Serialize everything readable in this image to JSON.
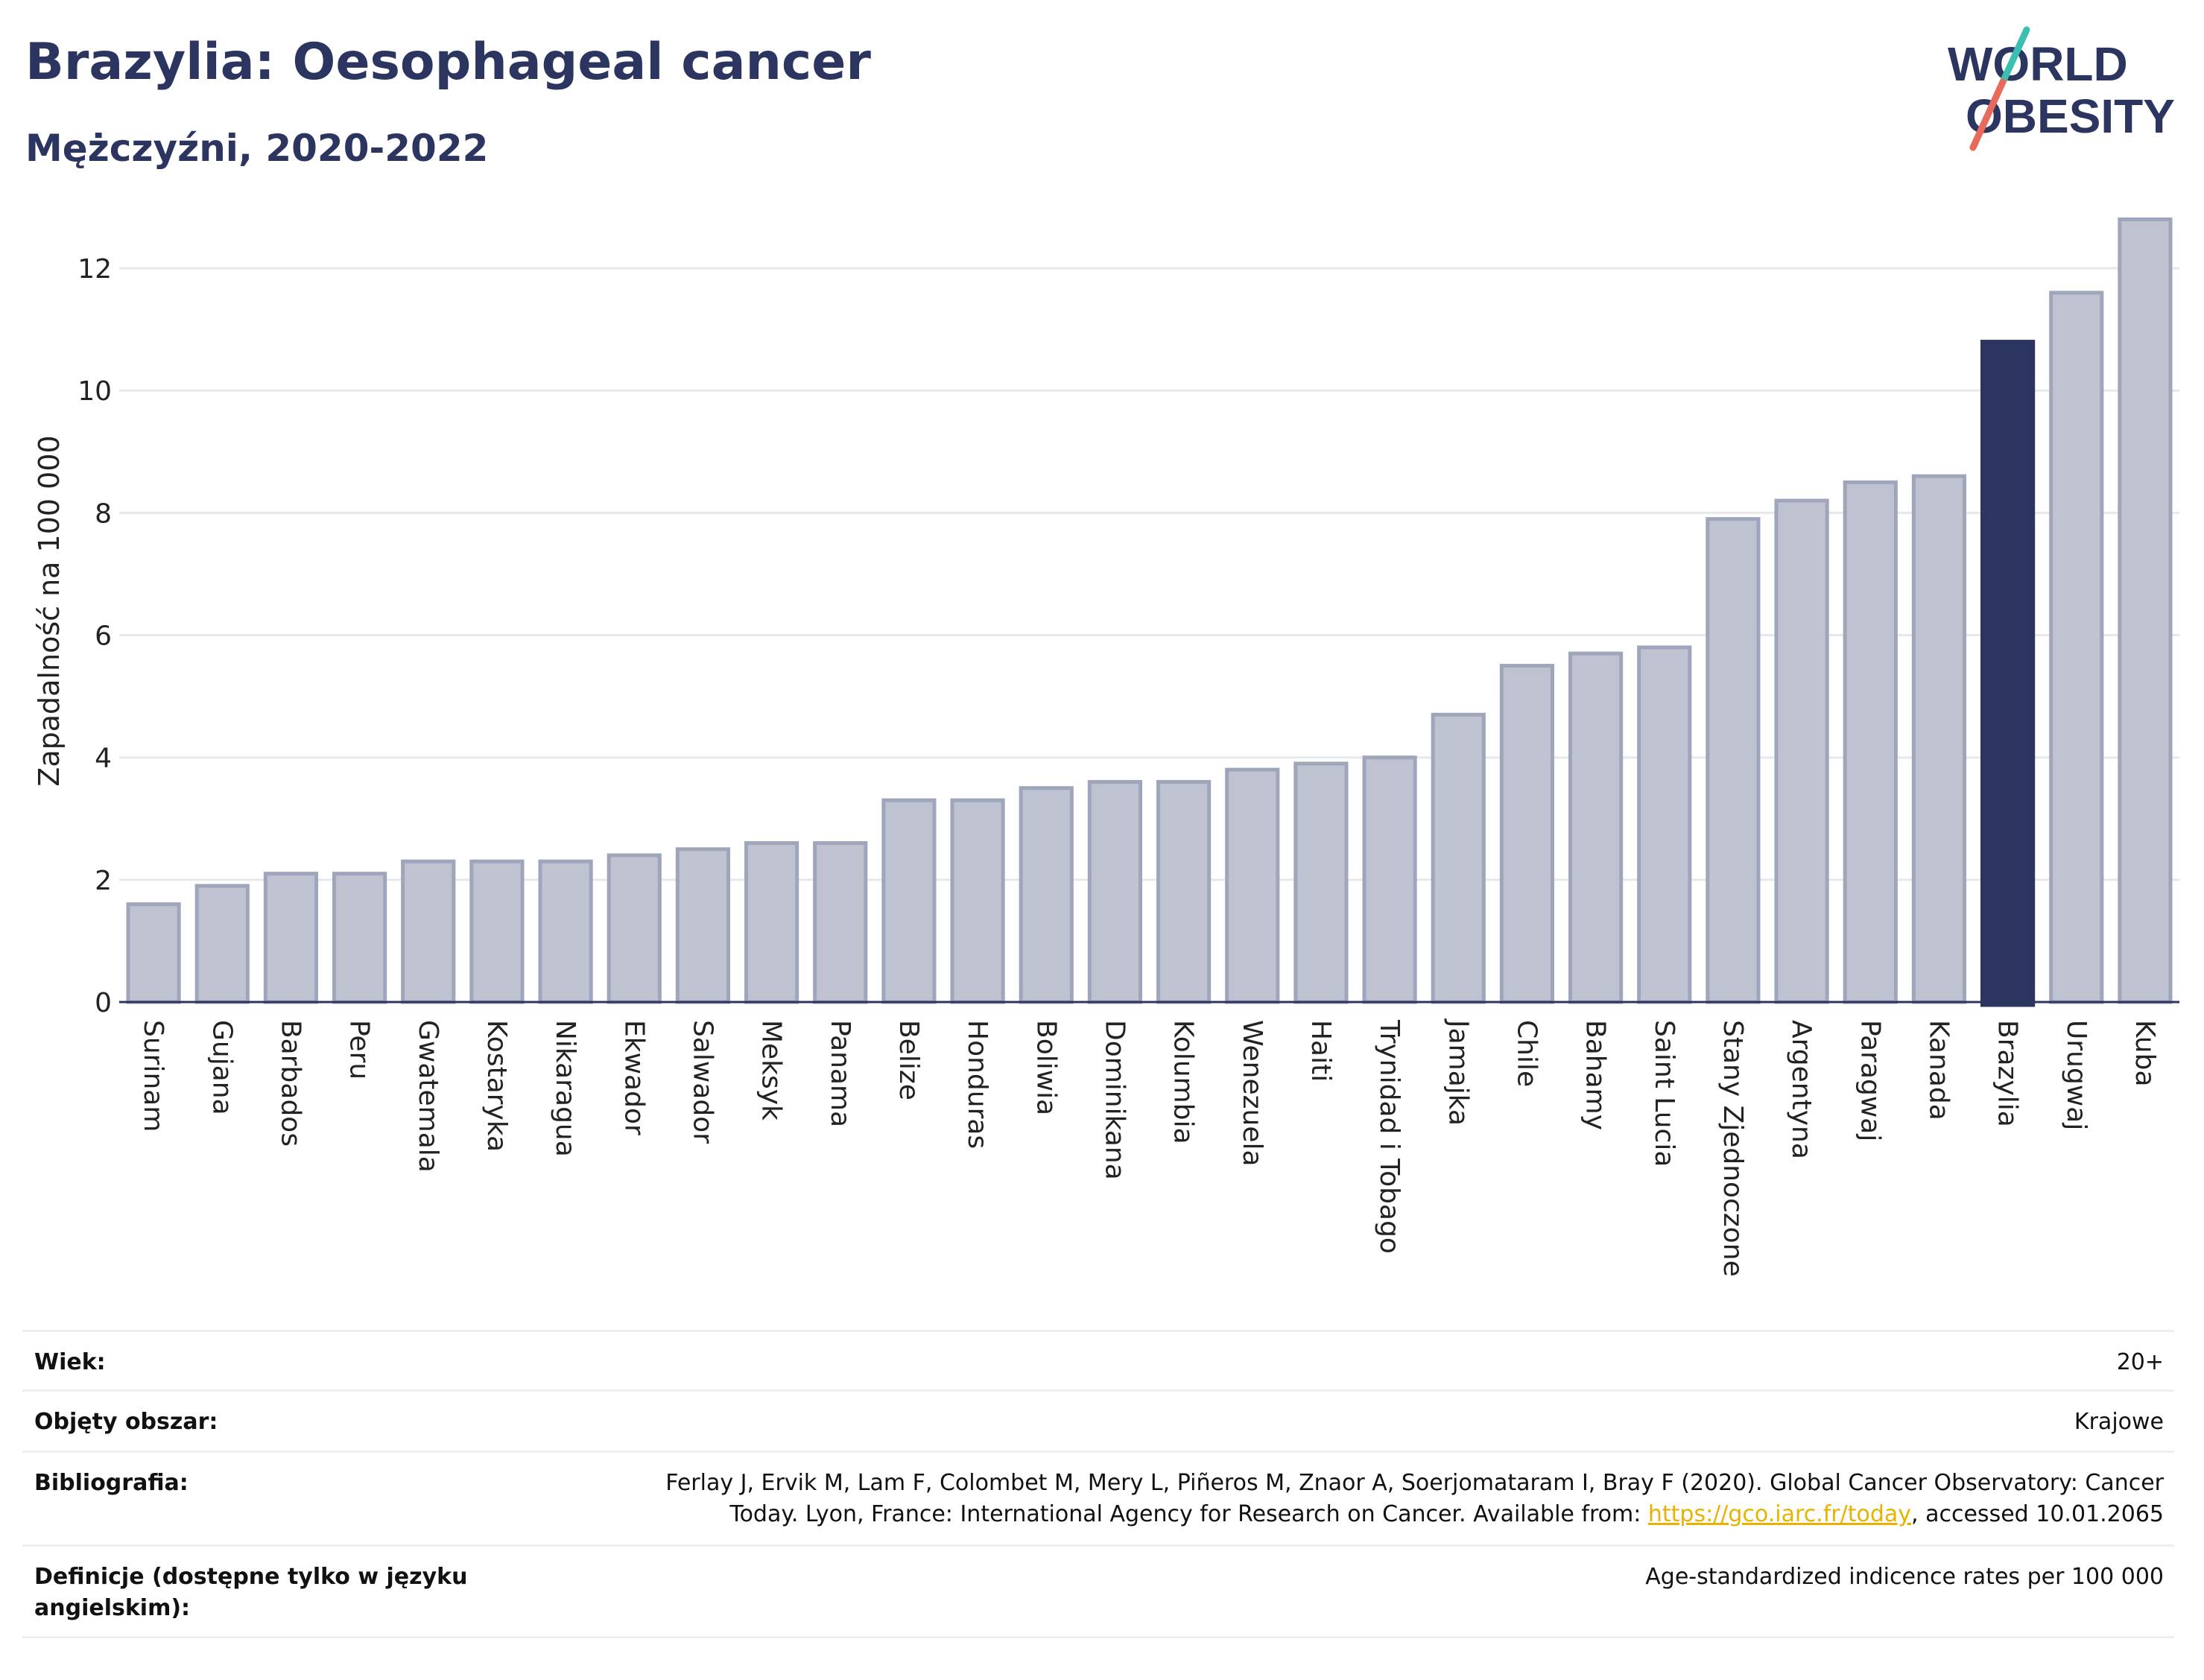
{
  "header": {
    "title": "Brazylia: Oesophageal cancer",
    "subtitle": "Mężczyźni, 2020-2022"
  },
  "logo": {
    "line1": "WORLD",
    "line2": "OBESITY",
    "slash_colors": [
      "#3bbfb0",
      "#e86a5a"
    ]
  },
  "colors": {
    "bar": "#bfc3d1",
    "bar_border": "#9fa5bb",
    "highlight": "#2b3560",
    "grid": "#e6e8ee",
    "axis": "#2b3560"
  },
  "chart_data": {
    "type": "bar",
    "title": "",
    "ylabel": "Zapadalność na 100 000",
    "ylim": [
      0,
      13
    ],
    "yticks": [
      0,
      2,
      4,
      6,
      8,
      10,
      12
    ],
    "categories": [
      "Surinam",
      "Gujana",
      "Barbados",
      "Peru",
      "Gwatemala",
      "Kostaryka",
      "Nikaragua",
      "Ekwador",
      "Salwador",
      "Meksyk",
      "Panama",
      "Belize",
      "Honduras",
      "Boliwia",
      "Dominikana",
      "Kolumbia",
      "Wenezuela",
      "Haiti",
      "Trynidad i Tobago",
      "Jamajka",
      "Chile",
      "Bahamy",
      "Saint Lucia",
      "Stany Zjednoczone",
      "Argentyna",
      "Paragwaj",
      "Kanada",
      "Brazylia",
      "Urugwaj",
      "Kuba"
    ],
    "values": [
      1.6,
      1.9,
      2.1,
      2.1,
      2.3,
      2.3,
      2.3,
      2.4,
      2.5,
      2.6,
      2.6,
      3.3,
      3.3,
      3.5,
      3.6,
      3.6,
      3.8,
      3.9,
      4.0,
      4.7,
      5.5,
      5.7,
      5.8,
      7.9,
      8.2,
      8.5,
      8.6,
      10.8,
      11.6,
      12.8
    ],
    "highlight": "Brazylia",
    "grid": true
  },
  "meta": {
    "age_label": "Wiek:",
    "age_value": "20+",
    "area_label": "Objęty obszar:",
    "area_value": "Krajowe",
    "bib_label": "Bibliografia:",
    "bib_text_1": "Ferlay J, Ervik M, Lam F, Colombet M, Mery L, Piñeros M, Znaor A, Soerjomataram I, Bray F (2020). Global Cancer Observatory: Cancer",
    "bib_text_2": "Today. Lyon, France: International Agency for Research on Cancer. Available from: ",
    "bib_link": "https://gco.iarc.fr/today",
    "bib_text_3": ", accessed 10.01.2065",
    "def_label": "Definicje (dostępne tylko w języku angielskim):",
    "def_value": "Age-standardized indicence rates per 100 000"
  }
}
